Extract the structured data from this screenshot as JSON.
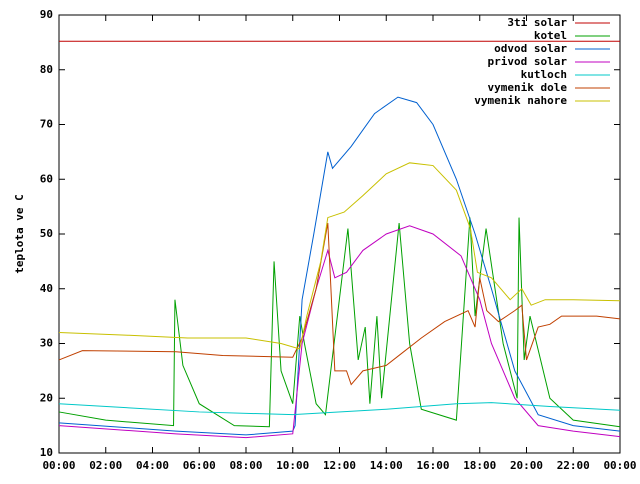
{
  "chart_data": {
    "type": "line",
    "ylabel": "teplota ve C",
    "xlim": [
      0,
      24
    ],
    "xticks": [
      {
        "value": 0,
        "label": "00:00"
      },
      {
        "value": 2,
        "label": "02:00"
      },
      {
        "value": 4,
        "label": "04:00"
      },
      {
        "value": 6,
        "label": "06:00"
      },
      {
        "value": 8,
        "label": "08:00"
      },
      {
        "value": 10,
        "label": "10:00"
      },
      {
        "value": 12,
        "label": "12:00"
      },
      {
        "value": 14,
        "label": "14:00"
      },
      {
        "value": 16,
        "label": "16:00"
      },
      {
        "value": 18,
        "label": "18:00"
      },
      {
        "value": 20,
        "label": "20:00"
      },
      {
        "value": 22,
        "label": "22:00"
      },
      {
        "value": 24,
        "label": "00:00"
      }
    ],
    "ylim": [
      10,
      90
    ],
    "yticks": [
      10,
      20,
      30,
      40,
      50,
      60,
      70,
      80,
      90
    ],
    "legend": "top-right",
    "series": [
      {
        "name": "3ti solar",
        "color": "#c00000",
        "x": [
          0,
          24
        ],
        "values": [
          85.2,
          85.2
        ]
      },
      {
        "name": "kotel",
        "color": "#00a000",
        "x": [
          0,
          2,
          4.9,
          4.96,
          5.3,
          6,
          7.5,
          9,
          9.2,
          9.5,
          10,
          10.3,
          10.5,
          11,
          11.4,
          12.36,
          12.8,
          13.1,
          13.3,
          13.6,
          13.8,
          14.55,
          15,
          15.5,
          17,
          17.58,
          17.8,
          18.27,
          19,
          19.6,
          19.68,
          19.9,
          20.15,
          21,
          22,
          24
        ],
        "values": [
          17.5,
          16,
          15,
          38,
          26,
          19,
          15,
          14.8,
          45,
          25,
          19,
          35,
          30,
          19,
          17,
          51,
          27,
          33,
          19,
          35,
          20,
          52,
          30,
          18,
          16,
          53,
          35,
          51,
          30,
          20,
          53,
          27,
          35,
          20,
          16,
          14.8
        ]
      },
      {
        "name": "odvod solar",
        "color": "#0060d0",
        "x": [
          0,
          5,
          8,
          10,
          10.1,
          10.4,
          10.9,
          11.5,
          11.7,
          12.5,
          13.5,
          14.5,
          15.3,
          16,
          17,
          17.8,
          18.5,
          19.5,
          20.5,
          22,
          24
        ],
        "values": [
          15.5,
          14,
          13.3,
          14,
          15,
          38,
          50,
          65,
          62,
          66,
          72,
          75,
          74,
          70,
          60,
          50,
          40,
          25,
          17,
          15,
          14
        ]
      },
      {
        "name": "privod solar",
        "color": "#c000c0",
        "x": [
          0,
          5,
          8,
          10,
          10.4,
          11,
          11.5,
          11.8,
          12.3,
          13,
          14,
          15,
          16,
          17.2,
          18,
          18.5,
          19.5,
          20.5,
          22,
          24
        ],
        "values": [
          15,
          13.5,
          12.8,
          13.5,
          30,
          40,
          47,
          42,
          43,
          47,
          50,
          51.5,
          50,
          46,
          38,
          30,
          20,
          15,
          14,
          13
        ]
      },
      {
        "name": "kutloch",
        "color": "#00c8c8",
        "x": [
          0,
          6,
          10,
          14,
          17,
          18.5,
          21,
          24
        ],
        "values": [
          19,
          17.5,
          17,
          18,
          19,
          19.2,
          18.5,
          17.8
        ]
      },
      {
        "name": "vymenik dole",
        "color": "#c04000",
        "x": [
          0,
          1,
          5,
          7,
          10,
          10.4,
          11,
          11.5,
          11.8,
          12.3,
          12.5,
          13,
          14,
          14.6,
          15.5,
          16.5,
          17.5,
          17.8,
          18,
          18.3,
          18.8,
          19.5,
          19.8,
          20,
          20.5,
          21,
          21.5,
          23,
          24
        ],
        "values": [
          27,
          28.7,
          28.5,
          27.8,
          27.5,
          31,
          40,
          52,
          25,
          25,
          22.5,
          25,
          26,
          28,
          31,
          34,
          36,
          33,
          42,
          36,
          34,
          36,
          37,
          27,
          33,
          33.5,
          35,
          35,
          34.5
        ]
      },
      {
        "name": "vymenik nahore",
        "color": "#c8c000",
        "x": [
          0,
          3,
          5.5,
          8,
          9.5,
          10.3,
          10.6,
          11.2,
          11.5,
          12.2,
          13,
          14,
          15,
          16,
          17,
          17.6,
          17.9,
          18.5,
          19.3,
          19.8,
          20.2,
          20.8,
          22,
          24
        ],
        "values": [
          32,
          31.5,
          31,
          31,
          30,
          29,
          35,
          45,
          53,
          54,
          57,
          61,
          63,
          62.5,
          58,
          51,
          43,
          42,
          38,
          40,
          37,
          38,
          38,
          37.8
        ]
      }
    ]
  }
}
